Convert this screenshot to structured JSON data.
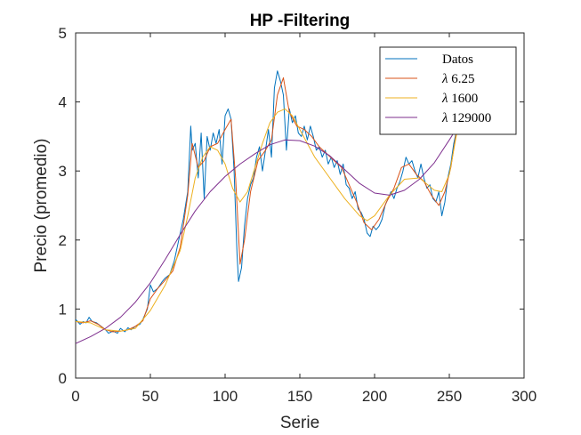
{
  "chart_data": {
    "type": "line",
    "title": "HP -Filtering",
    "xlabel": "Serie",
    "ylabel": "Precio (promedio)",
    "xlim": [
      0,
      300
    ],
    "ylim": [
      0,
      5
    ],
    "xticks": [
      0,
      50,
      100,
      150,
      200,
      250,
      300
    ],
    "yticks": [
      0,
      1,
      2,
      3,
      4,
      5
    ],
    "grid": false,
    "legend_position": "top-right",
    "series": [
      {
        "name": "Datos",
        "color": "#0072bd",
        "x": [
          0,
          3,
          5,
          7,
          9,
          11,
          14,
          17,
          20,
          22,
          25,
          28,
          30,
          33,
          35,
          37,
          40,
          43,
          45,
          48,
          50,
          52,
          55,
          58,
          60,
          63,
          66,
          69,
          72,
          75,
          77,
          78,
          80,
          82,
          84,
          86,
          88,
          90,
          92,
          94,
          96,
          98,
          100,
          102,
          104,
          106,
          108,
          109,
          111,
          113,
          115,
          117,
          119,
          121,
          123,
          125,
          127,
          129,
          131,
          133,
          135,
          137,
          139,
          141,
          143,
          145,
          147,
          149,
          151,
          153,
          155,
          157,
          159,
          161,
          163,
          165,
          167,
          169,
          171,
          173,
          175,
          177,
          179,
          181,
          183,
          185,
          187,
          189,
          191,
          193,
          195,
          197,
          199,
          201,
          203,
          205,
          207,
          209,
          211,
          213,
          215,
          217,
          219,
          221,
          223,
          225,
          227,
          229,
          231,
          233,
          235,
          237,
          239,
          241,
          243,
          245,
          247,
          249,
          251,
          253,
          255
        ],
        "y": [
          0.85,
          0.78,
          0.82,
          0.8,
          0.88,
          0.82,
          0.8,
          0.75,
          0.7,
          0.65,
          0.68,
          0.65,
          0.72,
          0.67,
          0.73,
          0.7,
          0.75,
          0.78,
          0.85,
          1.0,
          1.35,
          1.25,
          1.3,
          1.4,
          1.45,
          1.5,
          1.7,
          2.0,
          2.3,
          2.7,
          3.65,
          3.3,
          3.4,
          2.9,
          3.55,
          2.6,
          3.5,
          3.3,
          3.55,
          3.4,
          3.6,
          3.1,
          3.8,
          3.9,
          3.75,
          3.0,
          1.8,
          1.4,
          1.6,
          2.2,
          2.6,
          2.8,
          2.9,
          3.2,
          3.35,
          3.0,
          3.3,
          3.6,
          3.2,
          4.2,
          4.45,
          4.3,
          4.1,
          3.3,
          3.9,
          3.7,
          3.8,
          3.55,
          3.5,
          3.65,
          3.45,
          3.65,
          3.5,
          3.3,
          3.35,
          3.2,
          3.3,
          3.1,
          3.2,
          3.05,
          3.15,
          2.95,
          3.1,
          2.8,
          2.75,
          2.6,
          2.7,
          2.45,
          2.4,
          2.3,
          2.1,
          2.05,
          2.2,
          2.15,
          2.2,
          2.3,
          2.5,
          2.6,
          2.7,
          2.6,
          2.75,
          2.85,
          3.0,
          3.2,
          3.1,
          3.15,
          3.0,
          2.9,
          3.1,
          2.9,
          2.75,
          2.8,
          2.6,
          2.55,
          2.7,
          2.35,
          2.55,
          2.9,
          3.1,
          3.4,
          3.6
        ]
      },
      {
        "name": "λ 6.25",
        "color": "#d95319",
        "x": [
          0,
          5,
          10,
          15,
          20,
          25,
          30,
          35,
          40,
          45,
          50,
          55,
          60,
          65,
          70,
          75,
          78,
          82,
          86,
          90,
          95,
          100,
          104,
          107,
          110,
          113,
          117,
          122,
          127,
          131,
          135,
          139,
          143,
          148,
          153,
          158,
          163,
          168,
          173,
          178,
          183,
          188,
          193,
          198,
          203,
          208,
          213,
          218,
          223,
          228,
          233,
          238,
          243,
          247,
          251,
          255
        ],
        "y": [
          0.82,
          0.8,
          0.83,
          0.78,
          0.7,
          0.67,
          0.68,
          0.7,
          0.75,
          0.83,
          1.15,
          1.3,
          1.42,
          1.55,
          1.9,
          2.65,
          3.4,
          3.05,
          3.15,
          3.35,
          3.4,
          3.6,
          3.75,
          2.9,
          1.65,
          2.0,
          2.7,
          3.15,
          3.3,
          3.45,
          4.1,
          4.35,
          3.85,
          3.65,
          3.6,
          3.5,
          3.35,
          3.25,
          3.15,
          3.05,
          2.8,
          2.55,
          2.25,
          2.15,
          2.3,
          2.55,
          2.75,
          3.05,
          3.1,
          2.95,
          2.85,
          2.65,
          2.5,
          2.7,
          3.05,
          3.6
        ]
      },
      {
        "name": "λ 1600",
        "color": "#edb120",
        "x": [
          0,
          10,
          20,
          30,
          40,
          50,
          60,
          70,
          75,
          80,
          85,
          90,
          95,
          100,
          105,
          110,
          115,
          120,
          125,
          130,
          135,
          140,
          145,
          150,
          160,
          170,
          180,
          190,
          195,
          200,
          210,
          220,
          230,
          240,
          245,
          250,
          255
        ],
        "y": [
          0.82,
          0.8,
          0.7,
          0.68,
          0.72,
          0.98,
          1.35,
          1.85,
          2.35,
          2.9,
          3.2,
          3.35,
          3.3,
          3.1,
          2.75,
          2.55,
          2.7,
          3.05,
          3.4,
          3.7,
          3.85,
          3.9,
          3.8,
          3.6,
          3.2,
          2.9,
          2.6,
          2.35,
          2.28,
          2.35,
          2.65,
          2.88,
          2.9,
          2.72,
          2.7,
          2.95,
          3.55
        ]
      },
      {
        "name": "λ 129000",
        "color": "#7e2f8e",
        "x": [
          0,
          10,
          20,
          30,
          40,
          50,
          60,
          70,
          80,
          90,
          100,
          110,
          120,
          130,
          140,
          150,
          160,
          170,
          180,
          190,
          200,
          210,
          220,
          230,
          240,
          250,
          255
        ],
        "y": [
          0.5,
          0.6,
          0.72,
          0.88,
          1.1,
          1.38,
          1.72,
          2.08,
          2.42,
          2.7,
          2.92,
          3.1,
          3.25,
          3.38,
          3.45,
          3.44,
          3.36,
          3.22,
          3.02,
          2.82,
          2.68,
          2.65,
          2.72,
          2.88,
          3.12,
          3.45,
          3.62
        ]
      }
    ]
  }
}
